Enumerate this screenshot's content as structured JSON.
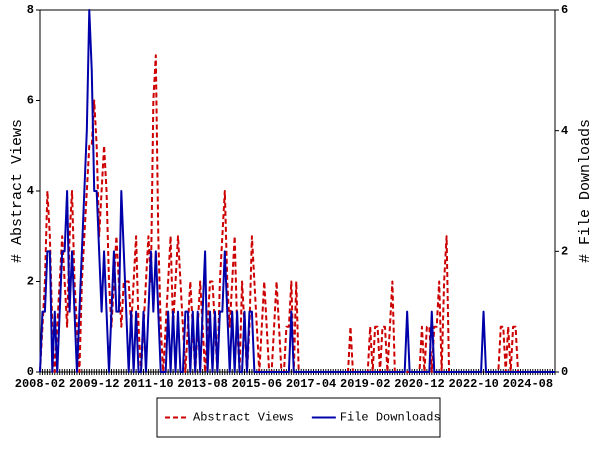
{
  "chart_data": {
    "type": "line",
    "y_label": "# Abstract Views",
    "y2_label": "# File Downloads",
    "categories": [
      "2008-02",
      null,
      null,
      null,
      null,
      null,
      null,
      null,
      null,
      null,
      null,
      null,
      null,
      null,
      null,
      null,
      null,
      null,
      null,
      null,
      null,
      null,
      "2009-12",
      null,
      null,
      null,
      null,
      null,
      null,
      null,
      null,
      null,
      null,
      null,
      null,
      null,
      null,
      null,
      null,
      null,
      null,
      null,
      null,
      null,
      "2011-10",
      null,
      null,
      null,
      null,
      null,
      null,
      null,
      null,
      null,
      null,
      null,
      null,
      null,
      null,
      null,
      null,
      null,
      null,
      null,
      null,
      null,
      "2013-08",
      null,
      null,
      null,
      null,
      null,
      null,
      null,
      null,
      null,
      null,
      null,
      null,
      null,
      null,
      null,
      null,
      null,
      null,
      null,
      null,
      null,
      "2015-06",
      null,
      null,
      null,
      null,
      null,
      null,
      null,
      null,
      null,
      null,
      null,
      null,
      null,
      null,
      null,
      null,
      null,
      null,
      null,
      null,
      null,
      "2017-04",
      null,
      null,
      null,
      null,
      null,
      null,
      null,
      null,
      null,
      null,
      null,
      null,
      null,
      null,
      null,
      null,
      null,
      null,
      null,
      null,
      null,
      "2019-02",
      null,
      null,
      null,
      null,
      null,
      null,
      null,
      null,
      null,
      null,
      null,
      null,
      null,
      null,
      null,
      null,
      null,
      null,
      null,
      null,
      null,
      "2020-12",
      null,
      null,
      null,
      null,
      null,
      null,
      null,
      null,
      null,
      null,
      null,
      null,
      null,
      null,
      null,
      null,
      null,
      null,
      null,
      null,
      null,
      "2022-10",
      null,
      null,
      null,
      null,
      null,
      null,
      null,
      null,
      null,
      null,
      null,
      null,
      null,
      null,
      null,
      null,
      null,
      null,
      null,
      null,
      null,
      "2024-08",
      null,
      null,
      null,
      null,
      null,
      null,
      null,
      null,
      null,
      null,
      null
    ],
    "series": [
      {
        "name": "Abstract Views",
        "color": "#cc0000",
        "dash": true,
        "axis": "y",
        "values": [
          0,
          1,
          2,
          4,
          3,
          1,
          0,
          1,
          2,
          3,
          2,
          1,
          3,
          4,
          2,
          1,
          0,
          2,
          3,
          4,
          5,
          5,
          6,
          5,
          3,
          4,
          5,
          4,
          2,
          1,
          2,
          3,
          2,
          1,
          2,
          2,
          2,
          1,
          2,
          3,
          1,
          0,
          1,
          2,
          3,
          2,
          6,
          7,
          3,
          1,
          0,
          1,
          2,
          3,
          1,
          2,
          3,
          2,
          1,
          0,
          1,
          2,
          1,
          0,
          1,
          2,
          1,
          0,
          1,
          2,
          2,
          1,
          0,
          2,
          3,
          4,
          2,
          1,
          2,
          3,
          1,
          0,
          2,
          1,
          0,
          1,
          3,
          2,
          1,
          0,
          1,
          2,
          1,
          0,
          0,
          1,
          2,
          1,
          0,
          0,
          1,
          1,
          2,
          0,
          2,
          0,
          0,
          0,
          0,
          0,
          0,
          0,
          0,
          0,
          0,
          0,
          0,
          0,
          0,
          0,
          0,
          0,
          0,
          0,
          0,
          0,
          1,
          0,
          0,
          0,
          0,
          0,
          0,
          0,
          1,
          0,
          1,
          1,
          0,
          1,
          1,
          0,
          1,
          2,
          0,
          0,
          0,
          0,
          0,
          0,
          0,
          0,
          0,
          0,
          0,
          1,
          0,
          1,
          1,
          0,
          1,
          1,
          2,
          0,
          2,
          3,
          0,
          0,
          0,
          0,
          0,
          0,
          0,
          0,
          0,
          0,
          0,
          0,
          0,
          0,
          0,
          0,
          0,
          0,
          0,
          0,
          0,
          1,
          1,
          0,
          1,
          0,
          1,
          1,
          0,
          0,
          0,
          0,
          0,
          0,
          0,
          0,
          0,
          0,
          0,
          0,
          0,
          0,
          0,
          0
        ]
      },
      {
        "name": "File Downloads",
        "color": "#0000aa",
        "dash": false,
        "axis": "y2",
        "values": [
          0,
          1,
          1,
          2,
          2,
          0,
          1,
          0,
          1,
          2,
          2,
          3,
          1,
          2,
          1,
          0,
          1,
          2,
          3,
          4,
          6,
          5,
          3,
          3,
          2,
          1,
          2,
          1,
          0,
          1,
          2,
          1,
          1,
          3,
          2,
          1,
          0,
          1,
          0,
          1,
          0,
          0,
          1,
          0,
          1,
          2,
          1,
          2,
          1,
          0,
          0,
          0,
          1,
          0,
          1,
          0,
          1,
          0,
          0,
          1,
          1,
          0,
          1,
          0,
          1,
          0,
          1,
          2,
          0,
          1,
          0,
          1,
          0,
          1,
          1,
          2,
          1,
          0,
          1,
          0,
          1,
          0,
          0,
          1,
          0,
          1,
          1,
          0,
          0,
          0,
          0,
          0,
          0,
          0,
          0,
          0,
          0,
          0,
          0,
          0,
          0,
          0,
          1,
          0,
          0,
          0,
          0,
          0,
          0,
          0,
          0,
          0,
          0,
          0,
          0,
          0,
          0,
          0,
          0,
          0,
          0,
          0,
          0,
          0,
          0,
          0,
          0,
          0,
          0,
          0,
          0,
          0,
          0,
          0,
          0,
          0,
          0,
          0,
          0,
          0,
          0,
          0,
          0,
          0,
          0,
          0,
          0,
          0,
          0,
          1,
          0,
          0,
          0,
          0,
          0,
          0,
          0,
          0,
          0,
          1,
          0,
          0,
          0,
          0,
          0,
          0,
          0,
          0,
          0,
          0,
          0,
          0,
          0,
          0,
          0,
          0,
          0,
          0,
          0,
          0,
          1,
          0,
          0,
          0,
          0,
          0,
          0,
          0,
          0,
          0,
          0,
          0,
          0,
          0,
          0,
          0,
          0,
          0,
          0,
          0,
          0,
          0,
          0,
          0,
          0,
          0,
          0,
          0,
          0,
          0
        ]
      }
    ],
    "ylim": [
      0,
      8
    ],
    "yticks": [
      0,
      2,
      4,
      6,
      8
    ],
    "y2lim": [
      0,
      6
    ],
    "y2ticks": [
      0,
      2,
      4,
      6
    ],
    "legend": "bottom",
    "grid": false
  }
}
